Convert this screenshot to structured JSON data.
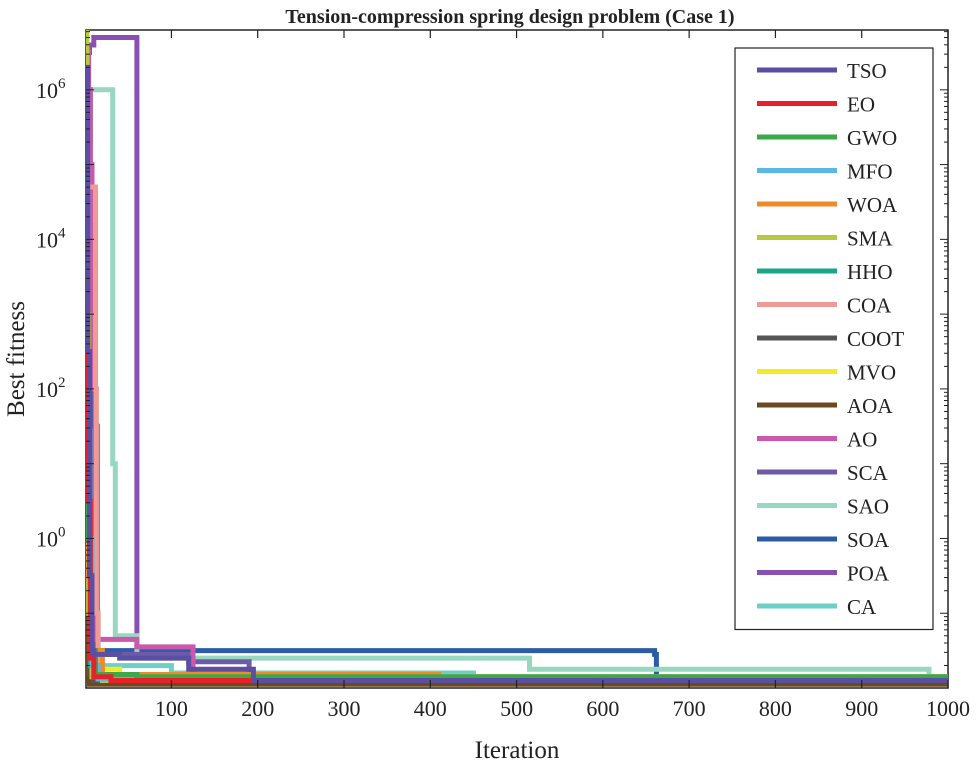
{
  "chart_data": {
    "type": "line",
    "title": "Tension-compression spring design problem  (Case 1)",
    "xlabel": "Iteration",
    "ylabel": "Best fitness",
    "xlim": [
      1,
      1000
    ],
    "ylim_log10": [
      -2.0,
      6.8
    ],
    "yscale": "log",
    "grid": false,
    "legend_position": "top-right",
    "x_ticks": [
      {
        "value": 100,
        "label": "100"
      },
      {
        "value": 200,
        "label": "200"
      },
      {
        "value": 300,
        "label": "300"
      },
      {
        "value": 400,
        "label": "400"
      },
      {
        "value": 500,
        "label": "500"
      },
      {
        "value": 600,
        "label": "600"
      },
      {
        "value": 700,
        "label": "700"
      },
      {
        "value": 800,
        "label": "800"
      },
      {
        "value": 900,
        "label": "900"
      },
      {
        "value": 1000,
        "label": "1000"
      }
    ],
    "y_ticks": [
      {
        "log10": 0,
        "base": "10",
        "exp": "0"
      },
      {
        "log10": 2,
        "base": "10",
        "exp": "2"
      },
      {
        "log10": 4,
        "base": "10",
        "exp": "4"
      },
      {
        "log10": 6,
        "base": "10",
        "exp": "6"
      }
    ],
    "series": [
      {
        "name": "TSO",
        "color": "#5a4fa3",
        "x": [
          1,
          3,
          5,
          8,
          10,
          40,
          110,
          120,
          190,
          195,
          1000
        ],
        "log10y": [
          6.3,
          2.5,
          -0.5,
          -1.5,
          -1.55,
          -1.6,
          -1.6,
          -1.75,
          -1.75,
          -1.9,
          -1.9
        ]
      },
      {
        "name": "EO",
        "color": "#e8202a",
        "x": [
          1,
          3,
          6,
          10,
          30,
          1000
        ],
        "log10y": [
          4.0,
          0.5,
          -1.6,
          -1.85,
          -1.9,
          -1.9
        ]
      },
      {
        "name": "GWO",
        "color": "#3aaa48",
        "x": [
          1,
          3,
          6,
          12,
          60,
          1000
        ],
        "log10y": [
          3.5,
          0.0,
          -1.5,
          -1.82,
          -1.85,
          -1.85
        ]
      },
      {
        "name": "MFO",
        "color": "#5bb8e6",
        "x": [
          1,
          3,
          8,
          15,
          1000
        ],
        "log10y": [
          5.0,
          0.0,
          -1.7,
          -1.88,
          -1.9
        ]
      },
      {
        "name": "WOA",
        "color": "#f08a28",
        "x": [
          1,
          3,
          8,
          20,
          400,
          410,
          1000
        ],
        "log10y": [
          3.0,
          -0.5,
          -1.5,
          -1.82,
          -1.82,
          -1.88,
          -1.88
        ]
      },
      {
        "name": "SMA",
        "color": "#b7c93e",
        "x": [
          1,
          2,
          4,
          8,
          20,
          1000
        ],
        "log10y": [
          6.8,
          3.0,
          -1.0,
          -1.85,
          -1.9,
          -1.9
        ]
      },
      {
        "name": "HHO",
        "color": "#1aa68a",
        "x": [
          1,
          3,
          6,
          15,
          1000
        ],
        "log10y": [
          4.5,
          0.0,
          -1.7,
          -1.88,
          -1.9
        ]
      },
      {
        "name": "COA",
        "color": "#f09a96",
        "x": [
          1,
          8,
          10,
          12,
          13,
          15,
          60,
          1000
        ],
        "log10y": [
          4.7,
          4.7,
          4.7,
          2.0,
          -1.0,
          -1.82,
          -1.85,
          -1.85
        ]
      },
      {
        "name": "COOT",
        "color": "#555555",
        "x": [
          1,
          2,
          5,
          10,
          1000
        ],
        "log10y": [
          3.0,
          0.0,
          -1.8,
          -1.9,
          -1.9
        ]
      },
      {
        "name": "MVO",
        "color": "#f5ea2a",
        "x": [
          1,
          2,
          3,
          5,
          10,
          40,
          1000
        ],
        "log10y": [
          6.6,
          4.0,
          1.0,
          -1.5,
          -1.75,
          -1.85,
          -1.85
        ]
      },
      {
        "name": "AOA",
        "color": "#6b4a1f",
        "x": [
          1,
          2,
          3,
          5,
          1000
        ],
        "log10y": [
          0.0,
          -1.0,
          -1.9,
          -1.95,
          -1.95
        ]
      },
      {
        "name": "AO",
        "color": "#cc58ad",
        "x": [
          1,
          2,
          4,
          6,
          8,
          12,
          55,
          60,
          120,
          125,
          1000
        ],
        "log10y": [
          6.5,
          6.5,
          6.0,
          5.0,
          2.0,
          -1.35,
          -1.35,
          -1.45,
          -1.45,
          -1.9,
          -1.9
        ]
      },
      {
        "name": "SCA",
        "color": "#6e5aa8",
        "x": [
          1,
          3,
          6,
          10,
          20,
          120,
          190,
          1000
        ],
        "log10y": [
          6.5,
          2.5,
          -1.0,
          -1.55,
          -1.55,
          -1.65,
          -1.9,
          -1.9
        ]
      },
      {
        "name": "SAO",
        "color": "#98d7c0",
        "x": [
          1,
          30,
          32,
          35,
          55,
          60,
          510,
          515,
          975,
          978,
          1000
        ],
        "log10y": [
          6.0,
          6.0,
          1.0,
          -1.3,
          -1.3,
          -1.6,
          -1.6,
          -1.75,
          -1.75,
          -1.9,
          -1.9
        ]
      },
      {
        "name": "SOA",
        "color": "#2c5ba8",
        "x": [
          1,
          3,
          6,
          10,
          12,
          14,
          100,
          660,
          662,
          1000
        ],
        "log10y": [
          6.4,
          6.0,
          4.0,
          1.5,
          1.5,
          -1.5,
          -1.5,
          -1.55,
          -1.9,
          -1.9
        ]
      },
      {
        "name": "POA",
        "color": "#8a4fb3",
        "x": [
          1,
          5,
          10,
          55,
          60,
          120,
          125,
          1000
        ],
        "log10y": [
          6.5,
          6.6,
          6.7,
          6.7,
          -1.5,
          -1.5,
          -1.9,
          -1.9
        ]
      },
      {
        "name": "CA",
        "color": "#6ccfc8",
        "x": [
          1,
          3,
          6,
          8,
          15,
          100,
          450,
          1000
        ],
        "log10y": [
          6.6,
          4.0,
          0.0,
          -1.0,
          -1.7,
          -1.8,
          -1.85,
          -1.9
        ]
      }
    ]
  }
}
